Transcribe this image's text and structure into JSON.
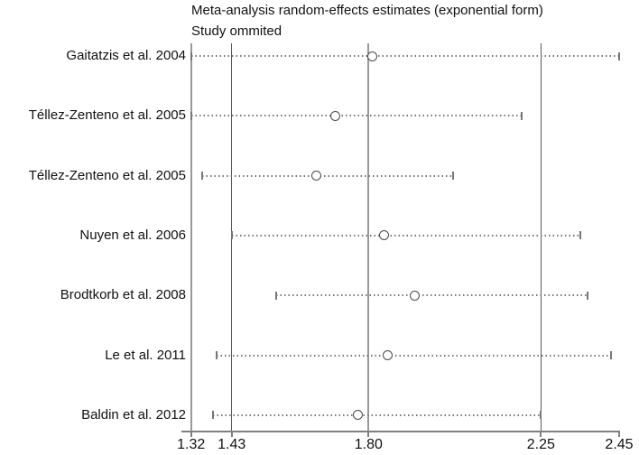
{
  "chart_data": {
    "type": "scatter",
    "subtype": "meta-analysis leave-one-out sensitivity (forest) plot, open-circle estimates with dotted CI whiskers",
    "title": "Meta-analysis random-effects estimates (exponential form)",
    "subtitle": "Study ommited",
    "xlim": [
      1.32,
      2.45
    ],
    "x_ticks": [
      1.32,
      1.43,
      1.8,
      2.25,
      2.45
    ],
    "x_tick_labels": [
      "1.32",
      "1.43",
      "1.80",
      "2.25",
      "2.45"
    ],
    "grid": "off",
    "legend": "none",
    "reference_lines": [
      {
        "value": 1.32,
        "tone": "gray"
      },
      {
        "value": 1.43,
        "tone": "dark"
      },
      {
        "value": 1.8,
        "tone": "gray"
      },
      {
        "value": 2.25,
        "tone": "dark"
      }
    ],
    "overall": {
      "lower": 1.43,
      "estimate": 1.8,
      "upper": 2.25
    },
    "studies": [
      {
        "label": "Gaitatzis et al. 2004",
        "lower": 1.32,
        "estimate": 1.81,
        "upper": 2.45
      },
      {
        "label": "Téllez-Zenteno et al. 2005",
        "lower": 1.32,
        "estimate": 1.71,
        "upper": 2.2
      },
      {
        "label": "Téllez-Zenteno et al. 2005",
        "lower": 1.35,
        "estimate": 1.66,
        "upper": 2.02
      },
      {
        "label": "Nuyen et al. 2006",
        "lower": 1.43,
        "estimate": 1.84,
        "upper": 2.35
      },
      {
        "label": "Brodtkorb et al. 2008",
        "lower": 1.55,
        "estimate": 1.92,
        "upper": 2.37
      },
      {
        "label": "Le et al. 2011",
        "lower": 1.39,
        "estimate": 1.85,
        "upper": 2.43
      },
      {
        "label": "Baldin et al. 2012",
        "lower": 1.38,
        "estimate": 1.77,
        "upper": 2.25
      }
    ],
    "colors": {
      "axis": "#808080",
      "ref_gray": "#999999",
      "ref_dark": "#5a5a5a",
      "whisker": "#777777",
      "marker_stroke": "#4a4a4a",
      "text": "#111111"
    }
  }
}
